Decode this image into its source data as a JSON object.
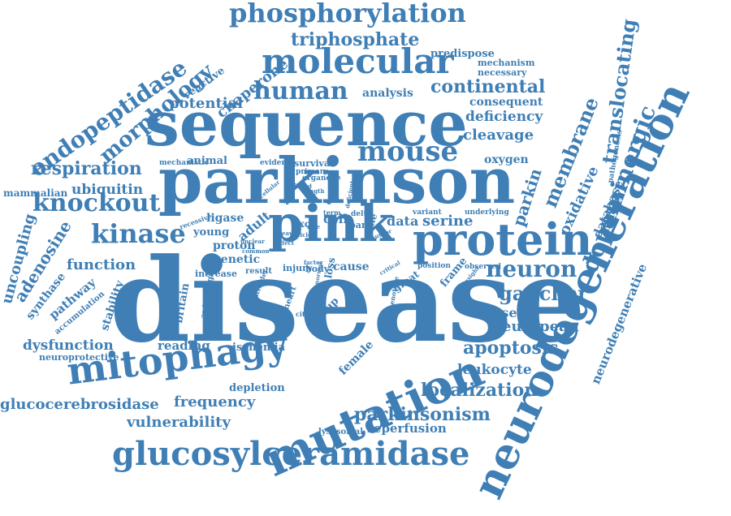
{
  "color": "#3f7fb5",
  "words": [
    "disease",
    "parkinson",
    "sequence",
    "neurodegeneration",
    "mutation",
    "pink",
    "protein",
    "molecular",
    "mitophagy",
    "glucosylceramidase",
    "phosphorylation",
    "mouse",
    "human",
    "kinase",
    "knockout",
    "endopeptidase",
    "morphology",
    "respiration",
    "triphosphate",
    "continental",
    "dopaminergic",
    "translocating",
    "membrane",
    "neuron",
    "gaucher",
    "apoptosis",
    "localization",
    "parkinsonism",
    "glucocerebrosidase",
    "frequency",
    "vulnerability",
    "dysfunction",
    "function",
    "adenosine",
    "uncoupling",
    "ubiquitin",
    "chaperone",
    "potential",
    "deficiency",
    "cleavage",
    "serine",
    "data",
    "oxidative",
    "european",
    "leukocyte",
    "atpases",
    "reperfusion",
    "neurodegenerative",
    "database",
    "reading",
    "ischemia",
    "depletion",
    "female",
    "consequent",
    "analysis",
    "predispose",
    "mechanism",
    "necessary",
    "reactive",
    "parkin",
    "oxygen",
    "ligase",
    "adult",
    "young",
    "proton",
    "genetic",
    "cell",
    "cause",
    "injury",
    "body",
    "animal",
    "pathway",
    "synthase",
    "stability",
    "britain",
    "mammalian",
    "neuroprotective",
    "accumulation",
    "mechanistic",
    "lysosomal",
    "increase",
    "result",
    "frame",
    "great",
    "position",
    "observed",
    "group",
    "loss",
    "heart",
    "autophagic",
    "middle",
    "pathogenesis",
    "survival",
    "primary",
    "organelle",
    "evidence",
    "aged",
    "open",
    "exon",
    "parl",
    "delta",
    "variant",
    "underlying",
    "male",
    "term",
    "recessive",
    "cellular",
    "related",
    "length",
    "cleave",
    "common",
    "unclear",
    "effect",
    "disorder",
    "rate",
    "citation",
    "phenotype",
    "critical",
    "insight",
    "author",
    "factor",
    "article",
    "deficient",
    "normal"
  ]
}
